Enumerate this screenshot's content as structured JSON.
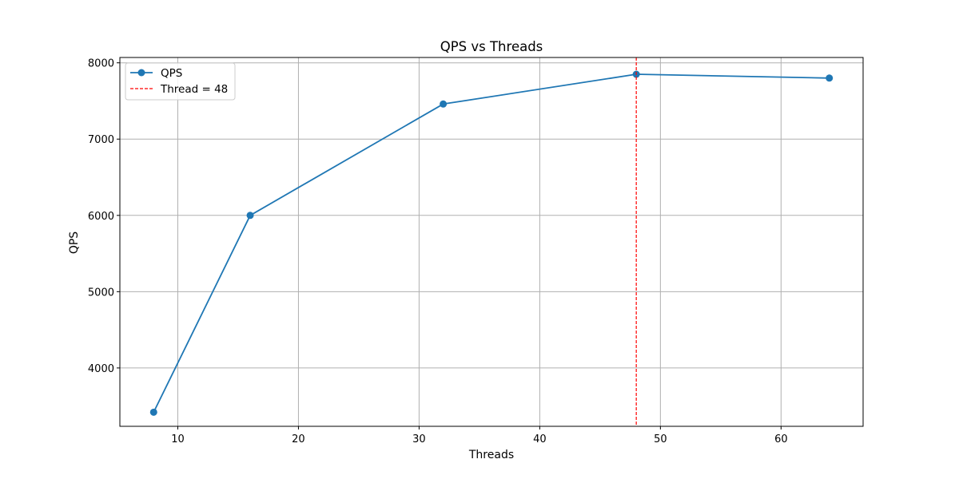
{
  "chart_data": {
    "type": "line",
    "title": "QPS vs Threads",
    "xlabel": "Threads",
    "ylabel": "QPS",
    "x": [
      8,
      16,
      32,
      48,
      64
    ],
    "series": [
      {
        "name": "QPS",
        "values": [
          3420,
          6000,
          7460,
          7850,
          7800
        ],
        "color": "#1f77b4",
        "marker": "circle"
      }
    ],
    "reference_lines": [
      {
        "orientation": "vertical",
        "x": 48,
        "label": "Thread = 48",
        "color": "#ff0000",
        "style": "dashed"
      }
    ],
    "xlim": [
      5.2,
      66.8
    ],
    "ylim": [
      3235,
      8070
    ],
    "xticks": [
      10,
      20,
      30,
      40,
      50,
      60
    ],
    "yticks": [
      4000,
      5000,
      6000,
      7000,
      8000
    ],
    "grid": true,
    "legend_position": "top-left"
  }
}
